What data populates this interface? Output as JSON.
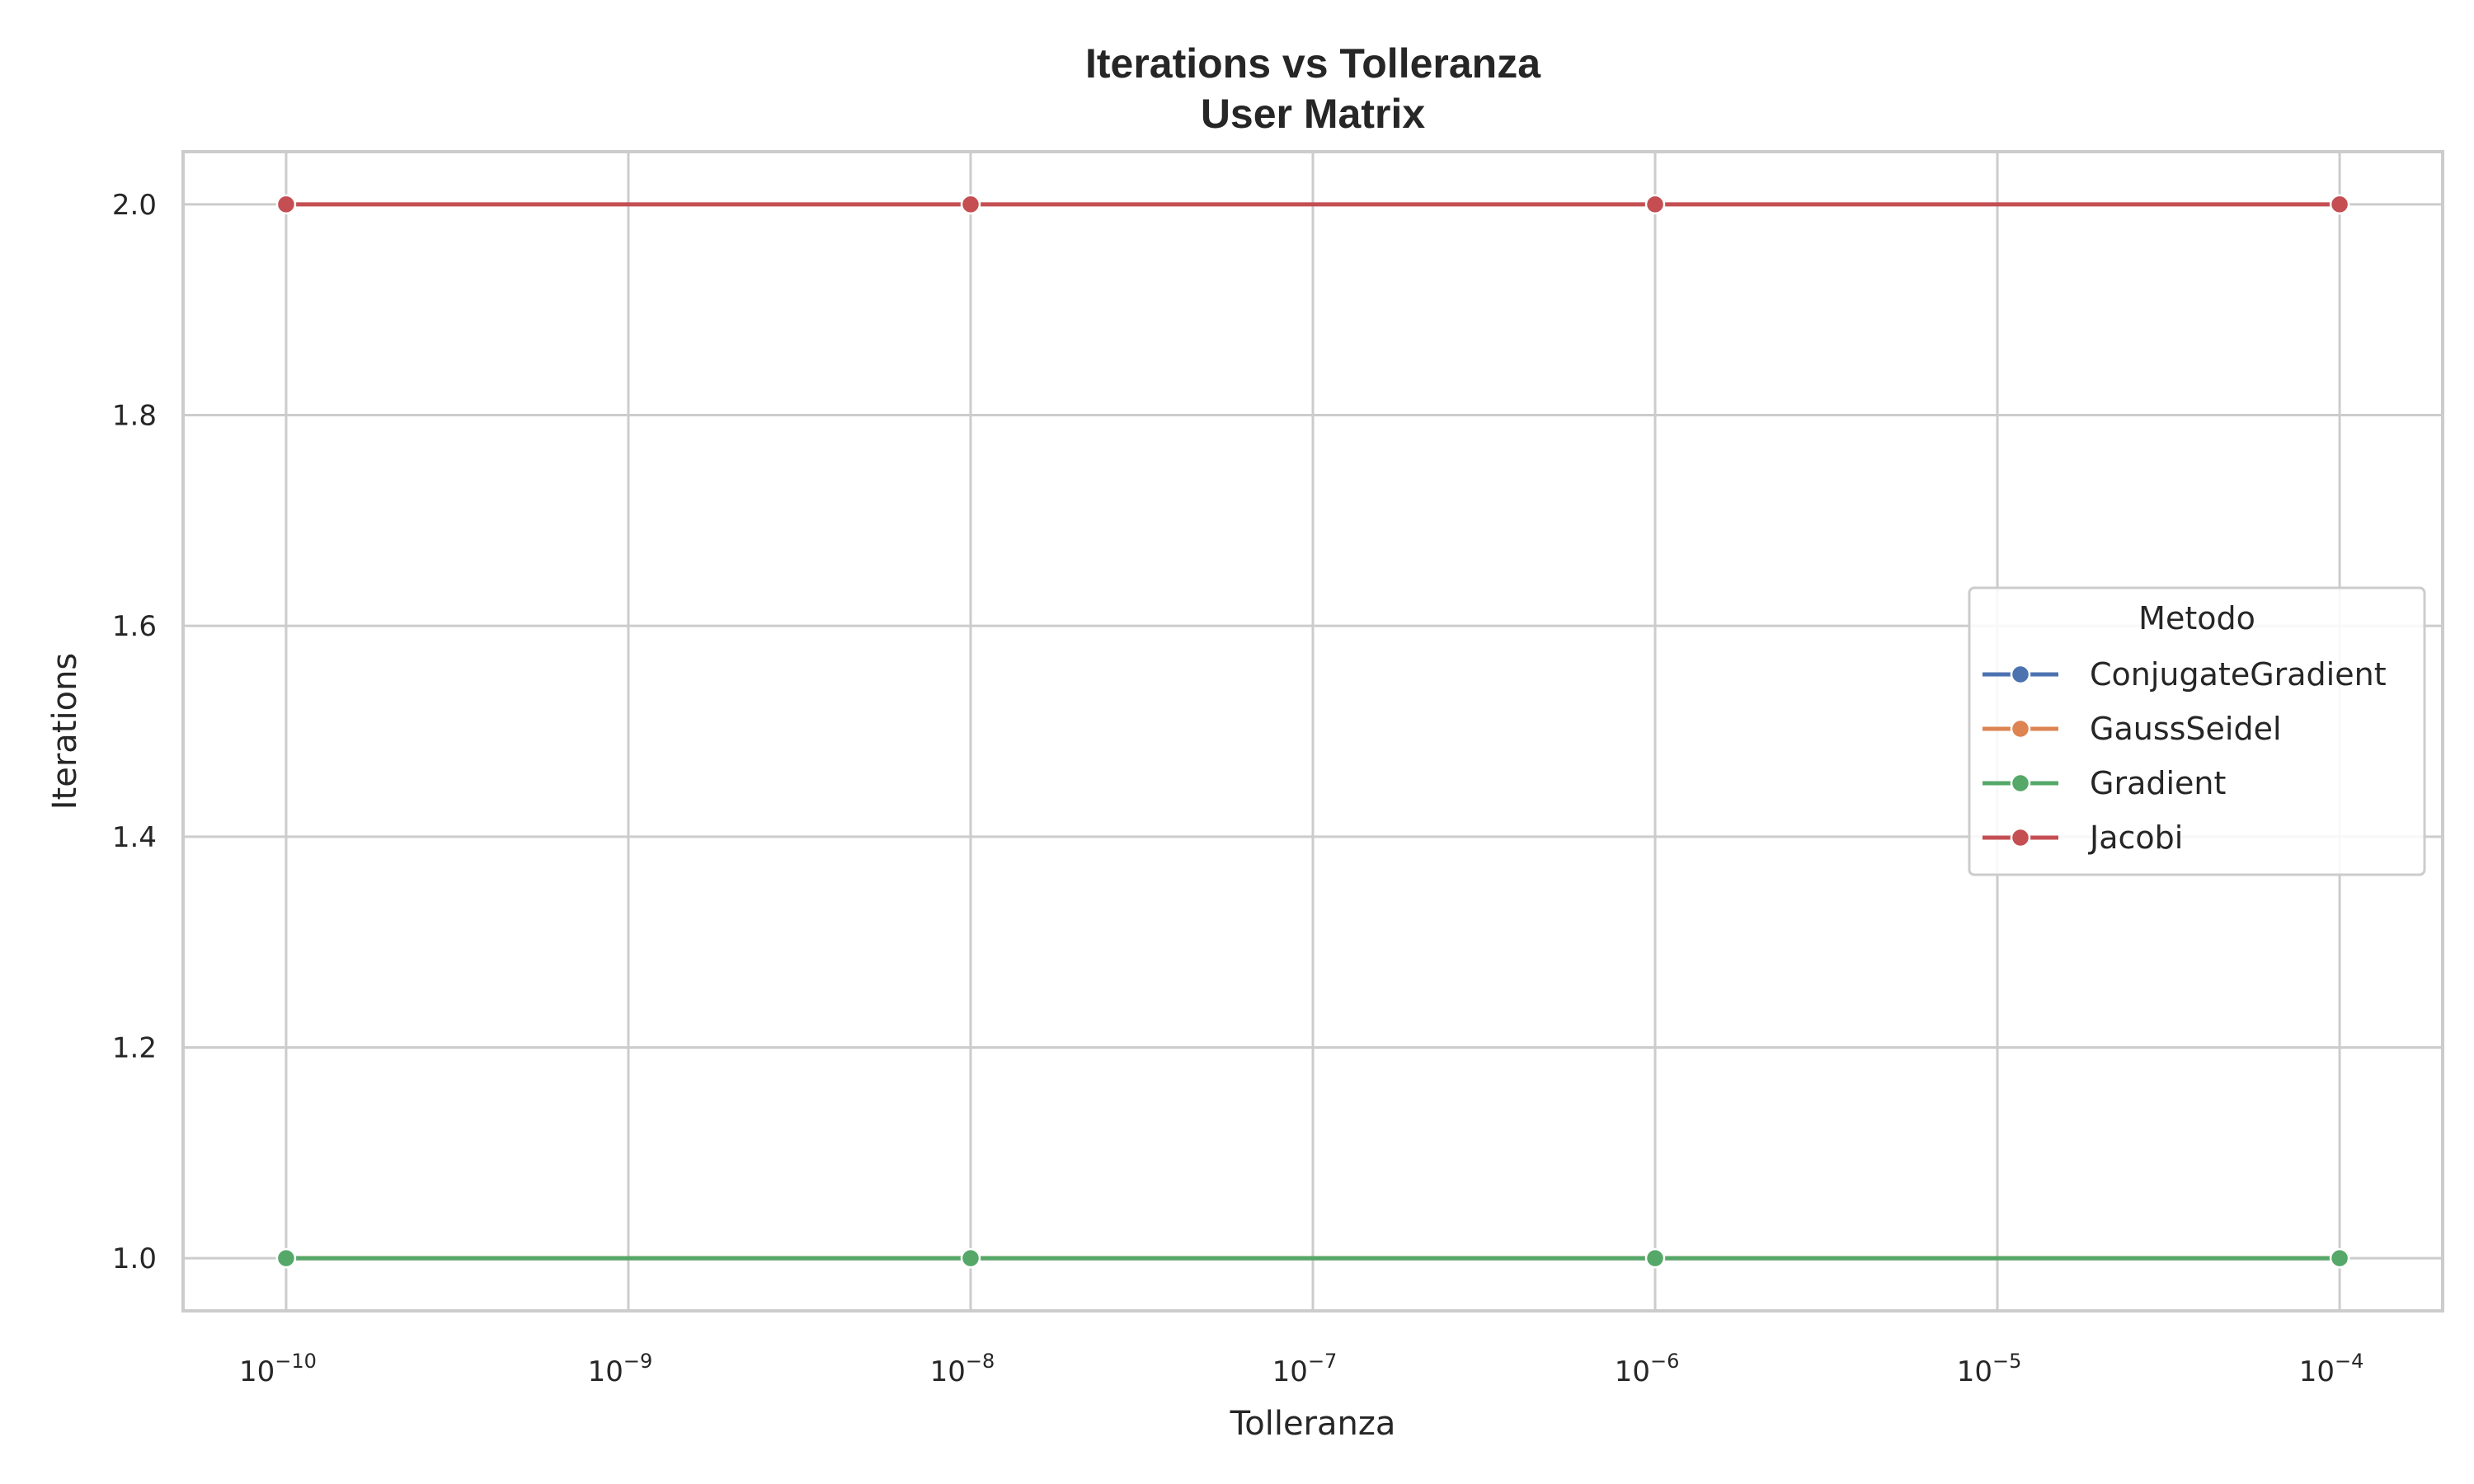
{
  "chart_data": {
    "type": "line",
    "title": "Iterations vs Tolleranza",
    "subtitle": "User Matrix",
    "xlabel": "Tolleranza",
    "ylabel": "Iterations",
    "xscale": "log",
    "xlim": [
      5e-11,
      0.0002
    ],
    "ylim": [
      0.95,
      2.05
    ],
    "xticks": [
      {
        "value": 1e-10,
        "base": "10",
        "exp": "−10"
      },
      {
        "value": 1e-09,
        "base": "10",
        "exp": "−9"
      },
      {
        "value": 1e-08,
        "base": "10",
        "exp": "−8"
      },
      {
        "value": 1e-07,
        "base": "10",
        "exp": "−7"
      },
      {
        "value": 1e-06,
        "base": "10",
        "exp": "−6"
      },
      {
        "value": 1e-05,
        "base": "10",
        "exp": "−5"
      },
      {
        "value": 0.0001,
        "base": "10",
        "exp": "−4"
      }
    ],
    "yticks": [
      {
        "value": 1.0,
        "label": "1.0"
      },
      {
        "value": 1.2,
        "label": "1.2"
      },
      {
        "value": 1.4,
        "label": "1.4"
      },
      {
        "value": 1.6,
        "label": "1.6"
      },
      {
        "value": 1.8,
        "label": "1.8"
      },
      {
        "value": 2.0,
        "label": "2.0"
      }
    ],
    "grid": true,
    "legend": {
      "title": "Metodo",
      "placement": "center-right"
    },
    "x": [
      1e-10,
      1e-08,
      1e-06,
      0.0001
    ],
    "series": [
      {
        "name": "ConjugateGradient",
        "color": "#4c72b0",
        "values": [
          1,
          1,
          1,
          1
        ]
      },
      {
        "name": "GaussSeidel",
        "color": "#dd8452",
        "values": [
          1,
          1,
          1,
          1
        ]
      },
      {
        "name": "Gradient",
        "color": "#55a868",
        "values": [
          1,
          1,
          1,
          1
        ]
      },
      {
        "name": "Jacobi",
        "color": "#c44e52",
        "values": [
          2,
          2,
          2,
          2
        ]
      }
    ]
  }
}
